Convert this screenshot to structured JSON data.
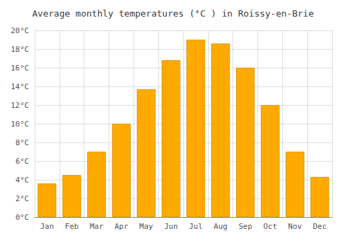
{
  "chart_data": {
    "type": "bar",
    "title": "Average monthly temperatures (°C ) in Roissy-en-Brie",
    "categories": [
      "Jan",
      "Feb",
      "Mar",
      "Apr",
      "May",
      "Jun",
      "Jul",
      "Aug",
      "Sep",
      "Oct",
      "Nov",
      "Dec"
    ],
    "values": [
      3.6,
      4.5,
      7.0,
      10.0,
      13.7,
      16.8,
      19.0,
      18.6,
      16.0,
      12.0,
      7.0,
      4.3
    ],
    "color": "#FFAA00",
    "ylim": [
      0,
      20
    ],
    "yticks": [
      {
        "value": 0,
        "label": "0°C"
      },
      {
        "value": 2,
        "label": "2°C"
      },
      {
        "value": 4,
        "label": "4°C"
      },
      {
        "value": 6,
        "label": "6°C"
      },
      {
        "value": 8,
        "label": "8°C"
      },
      {
        "value": 10,
        "label": "10°C"
      },
      {
        "value": 12,
        "label": "12°C"
      },
      {
        "value": 14,
        "label": "14°C"
      },
      {
        "value": 16,
        "label": "16°C"
      },
      {
        "value": 18,
        "label": "18°C"
      },
      {
        "value": 20,
        "label": "20°C"
      }
    ],
    "grid": true
  }
}
